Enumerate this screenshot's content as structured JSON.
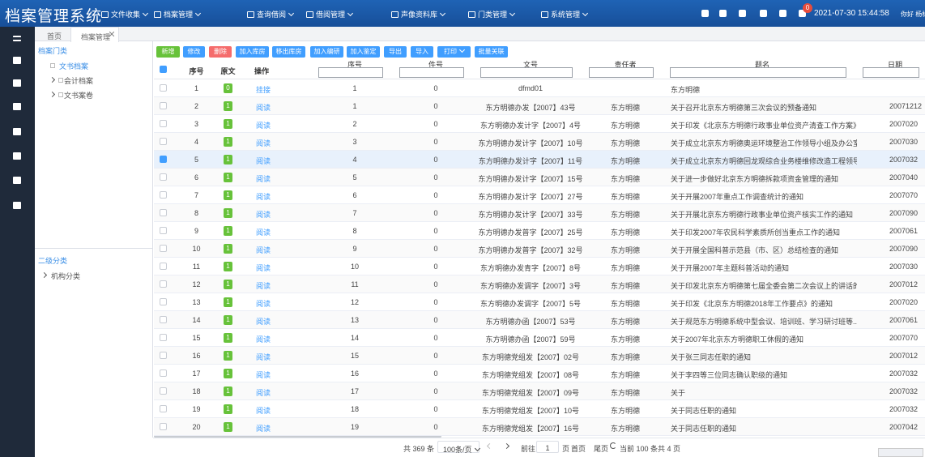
{
  "header": {
    "title": "档案管理系统",
    "nav": [
      "文件收集",
      "档案管理",
      "查询借阅",
      "借阅管理",
      "声像资料库",
      "门类管理",
      "系统管理"
    ],
    "notification_count": "0",
    "datetime": "2021-07-30 15:44:58",
    "greeting": "你好 杨标"
  },
  "tabs": [
    "首页",
    "档案管理"
  ],
  "tree": {
    "title": "档案门类",
    "items": [
      "文书档案",
      "会计档案",
      "文书案卷"
    ],
    "sub_title": "二级分类",
    "sub_items": [
      "机构分类"
    ]
  },
  "toolbar": [
    "新增",
    "修改",
    "删除",
    "加入库房",
    "移出库房",
    "加入编研",
    "加入鉴定",
    "导出",
    "导入",
    "打印",
    "批量关联"
  ],
  "table": {
    "columns": [
      "序号",
      "原文",
      "操作",
      "序号",
      "件号",
      "文号",
      "责任者",
      "题名",
      "日期"
    ],
    "rows": [
      [
        1,
        "0",
        "挂接",
        1,
        0,
        "dfmd01",
        null,
        "东方明德",
        null
      ],
      [
        2,
        "1",
        "阅读",
        1,
        0,
        "东方明德办发【2007】43号",
        "东方明德",
        "关于召开北京东方明德第三次会议的预备通知",
        "20071212"
      ],
      [
        3,
        "1",
        "阅读",
        2,
        0,
        "东方明德办发计字【2007】4号",
        "东方明德",
        "关于印发《北京东方明德行政事业单位资产清查工作方案》...",
        "2007020"
      ],
      [
        4,
        "1",
        "阅读",
        3,
        0,
        "东方明德办发计字【2007】10号",
        "东方明德",
        "关于成立北京东方明德奥运环境整治工作领导小组及办公室...",
        "2007030"
      ],
      [
        5,
        "1",
        "阅读",
        4,
        0,
        "东方明德办发计字【2007】11号",
        "东方明德",
        "关于成立北京东方明德回龙观综合业务楼维修改造工程领导...",
        "2007032"
      ],
      [
        6,
        "1",
        "阅读",
        5,
        0,
        "东方明德办发计字【2007】15号",
        "东方明德",
        "关于进一步做好北京东方明德拆款项资金管理的通知",
        "2007040"
      ],
      [
        7,
        "1",
        "阅读",
        6,
        0,
        "东方明德办发计字【2007】27号",
        "东方明德",
        "关于开展2007年重点工作调查统计的通知",
        "2007070"
      ],
      [
        8,
        "1",
        "阅读",
        7,
        0,
        "东方明德办发计字【2007】33号",
        "东方明德",
        "关于开展北京东方明德行政事业单位资产核实工作的通知",
        "2007090"
      ],
      [
        9,
        "1",
        "阅读",
        8,
        0,
        "东方明德办发普字【2007】25号",
        "东方明德",
        "关于印发2007年农民科学素质所创当重点工作的通知",
        "2007061"
      ],
      [
        10,
        "1",
        "阅读",
        9,
        0,
        "东方明德办发普字【2007】32号",
        "东方明德",
        "关于开展全国科普示范县（市、区）总结检查的通知",
        "2007090"
      ],
      [
        11,
        "1",
        "阅读",
        10,
        0,
        "东方明德办发青字【2007】8号",
        "东方明德",
        "关于开展2007年主题科普活动的通知",
        "2007030"
      ],
      [
        12,
        "1",
        "阅读",
        11,
        0,
        "东方明德办发调字【2007】3号",
        "东方明德",
        "关于印发北京东方明德第七届全委会第二次会议上的讲话的...",
        "2007012"
      ],
      [
        13,
        "1",
        "阅读",
        12,
        0,
        "东方明德办发调字【2007】5号",
        "东方明德",
        "关于印发《北京东方明德2018年工作要点》的通知",
        "2007020"
      ],
      [
        14,
        "1",
        "阅读",
        13,
        0,
        "东方明德办函【2007】53号",
        "东方明德",
        "关于规范东方明德系统中型会议、培训班、学习研讨班等...",
        "2007061"
      ],
      [
        15,
        "1",
        "阅读",
        14,
        0,
        "东方明德办函【2007】59号",
        "东方明德",
        "关于2007年北京东方明德职工休假的通知",
        "2007070"
      ],
      [
        16,
        "1",
        "阅读",
        15,
        0,
        "东方明德党组发【2007】02号",
        "东方明德",
        "关于张三同志任职的通知",
        "2007012"
      ],
      [
        17,
        "1",
        "阅读",
        16,
        0,
        "东方明德党组发【2007】08号",
        "东方明德",
        "关于李四等三位同志确认职级的通知",
        "2007032"
      ],
      [
        18,
        "1",
        "阅读",
        17,
        0,
        "东方明德党组发【2007】09号",
        "东方明德",
        "关于",
        "2007032"
      ],
      [
        19,
        "1",
        "阅读",
        18,
        0,
        "东方明德党组发【2007】10号",
        "东方明德",
        "关于同志任职的通知",
        "2007032"
      ],
      [
        20,
        "1",
        "阅读",
        19,
        0,
        "东方明德党组发【2007】16号",
        "东方明德",
        "关于同志任职的通知",
        "2007042"
      ]
    ]
  },
  "pagination": {
    "total": "共 369 条",
    "page_size": "100条/页",
    "goto": "前往",
    "page": "1",
    "page_suffix": "页",
    "first": "首页",
    "last": "尾页",
    "current": "当前 100 条",
    "pages": "共 4 页"
  }
}
